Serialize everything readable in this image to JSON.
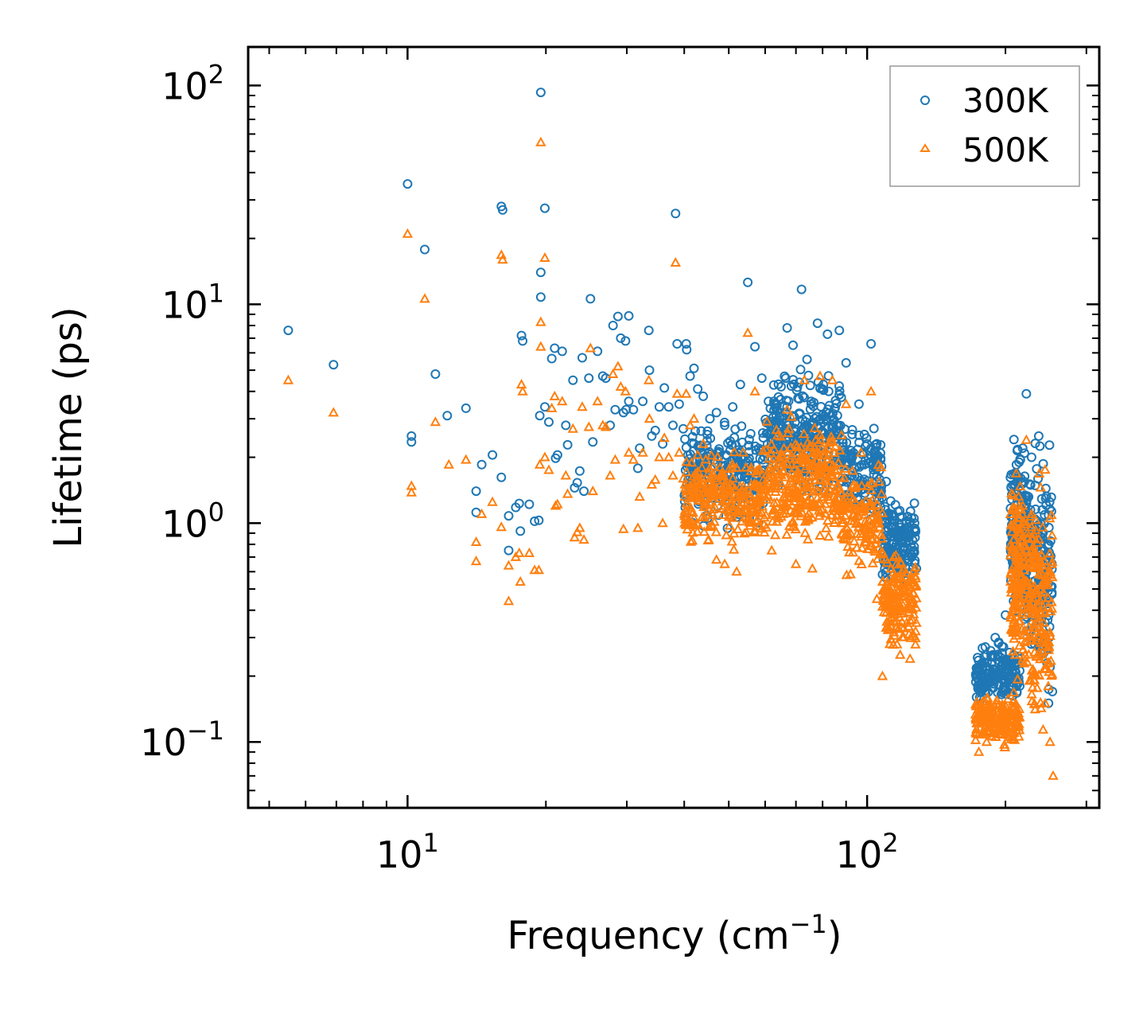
{
  "chart_data": {
    "type": "scatter",
    "xlabel_main": "Frequency (cm",
    "xlabel_sup": "−1",
    "xlabel_tail": ")",
    "ylabel": "Lifetime (ps)",
    "xscale": "log",
    "yscale": "log",
    "xlim": [
      4.5,
      320
    ],
    "ylim": [
      0.05,
      150
    ],
    "x_ticks": [
      {
        "value": 10,
        "base": "10",
        "exp": "1"
      },
      {
        "value": 100,
        "base": "10",
        "exp": "2"
      }
    ],
    "y_ticks": [
      {
        "value": 0.1,
        "base": "10",
        "exp": "−1"
      },
      {
        "value": 1,
        "base": "10",
        "exp": "0"
      },
      {
        "value": 10,
        "base": "10",
        "exp": "1"
      },
      {
        "value": 100,
        "base": "10",
        "exp": "2"
      }
    ],
    "legend_position": "top-right",
    "series": [
      {
        "name": "300K",
        "marker": "circle",
        "color": "#1f77b4",
        "points": [
          [
            5.5,
            7.6
          ],
          [
            6.9,
            5.3
          ],
          [
            10.0,
            35.5
          ],
          [
            10.2,
            2.5
          ],
          [
            10.2,
            2.35
          ],
          [
            10.9,
            17.8
          ],
          [
            11.5,
            4.8
          ],
          [
            12.2,
            3.1
          ],
          [
            13.4,
            3.35
          ],
          [
            14.1,
            1.4
          ],
          [
            14.1,
            1.12
          ],
          [
            14.5,
            1.85
          ],
          [
            15.3,
            2.05
          ],
          [
            16.0,
            28.0
          ],
          [
            16.1,
            27.0
          ],
          [
            16.0,
            1.62
          ],
          [
            16.6,
            1.08
          ],
          [
            16.6,
            0.75
          ],
          [
            17.2,
            1.18
          ],
          [
            17.5,
            1.23
          ],
          [
            17.6,
            0.92
          ],
          [
            17.7,
            7.2
          ],
          [
            17.8,
            6.8
          ],
          [
            18.4,
            1.22
          ],
          [
            18.9,
            1.02
          ],
          [
            19.3,
            1.03
          ],
          [
            19.5,
            93.0
          ],
          [
            19.4,
            3.1
          ],
          [
            19.5,
            14.0
          ],
          [
            19.5,
            10.8
          ],
          [
            19.9,
            27.5
          ],
          [
            19.9,
            3.4
          ],
          [
            20.3,
            2.9
          ],
          [
            20.6,
            5.65
          ],
          [
            20.9,
            6.3
          ],
          [
            21.0,
            1.98
          ],
          [
            21.2,
            2.05
          ],
          [
            21.7,
            6.1
          ],
          [
            22.1,
            2.8
          ],
          [
            22.3,
            2.28
          ],
          [
            22.9,
            4.5
          ],
          [
            23.1,
            1.45
          ],
          [
            23.4,
            1.53
          ],
          [
            23.7,
            1.73
          ],
          [
            24.0,
            5.7
          ],
          [
            24.2,
            1.4
          ],
          [
            24.8,
            4.6
          ],
          [
            25.3,
            2.35
          ],
          [
            25.0,
            10.6
          ],
          [
            25.9,
            6.1
          ],
          [
            26.6,
            4.7
          ],
          [
            27.0,
            4.6
          ],
          [
            27.6,
            2.8
          ],
          [
            28.0,
            8.0
          ],
          [
            28.3,
            3.3
          ],
          [
            28.7,
            8.8
          ],
          [
            29.1,
            7.0
          ],
          [
            29.5,
            3.2
          ],
          [
            29.8,
            6.8
          ],
          [
            30.3,
            3.6
          ],
          [
            30.3,
            8.85
          ],
          [
            31.0,
            3.3
          ],
          [
            29.9,
            3.3
          ],
          [
            31.7,
            1.78
          ],
          [
            32.0,
            2.2
          ],
          [
            32.5,
            3.6
          ],
          [
            33.5,
            7.6
          ],
          [
            33.6,
            5.0
          ],
          [
            34.0,
            2.5
          ],
          [
            34.6,
            2.65
          ],
          [
            35.3,
            3.4
          ],
          [
            35.9,
            2.3
          ],
          [
            36.2,
            4.15
          ],
          [
            37.0,
            3.4
          ],
          [
            37.8,
            2.8
          ],
          [
            38.3,
            26.0
          ],
          [
            38.6,
            6.6
          ],
          [
            39.0,
            3.5
          ],
          [
            39.8,
            2.7
          ],
          [
            40.4,
            6.6
          ],
          [
            40.5,
            6.2
          ],
          [
            41.2,
            4.7
          ],
          [
            42.0,
            5.1
          ],
          [
            42.8,
            4.1
          ],
          [
            44.0,
            3.8
          ],
          [
            45.5,
            3.0
          ],
          [
            47.0,
            3.2
          ],
          [
            49.0,
            2.8
          ],
          [
            51.0,
            3.4
          ],
          [
            53.0,
            4.3
          ],
          [
            55.0,
            12.6
          ],
          [
            57.0,
            6.4
          ],
          [
            59.0,
            4.6
          ],
          [
            61.0,
            3.6
          ],
          [
            65.0,
            4.2
          ],
          [
            67.0,
            7.8
          ],
          [
            69.0,
            6.5
          ],
          [
            72.0,
            11.7
          ],
          [
            74.0,
            5.6
          ],
          [
            78.0,
            8.2
          ],
          [
            82.0,
            7.3
          ],
          [
            87.0,
            7.6
          ],
          [
            90.0,
            5.4
          ],
          [
            96.0,
            3.5
          ],
          [
            102.0,
            6.6
          ],
          [
            105.0,
            2.3
          ],
          [
            110.0,
            1.55
          ],
          [
            112.0,
            1.03
          ],
          [
            116.0,
            0.92
          ],
          [
            120.0,
            0.78
          ],
          [
            125.0,
            0.7
          ],
          [
            128.0,
            0.62
          ],
          [
            175.0,
            0.22
          ],
          [
            182.0,
            0.25
          ],
          [
            190.0,
            0.3
          ],
          [
            200.0,
            0.38
          ],
          [
            210.0,
            0.7
          ],
          [
            218.0,
            2.2
          ],
          [
            222.0,
            3.9
          ],
          [
            228.0,
            2.0
          ],
          [
            236.0,
            0.55
          ],
          [
            244.0,
            0.3
          ],
          [
            250.0,
            0.22
          ],
          [
            253.0,
            0.17
          ]
        ],
        "dense_regions": [
          {
            "x_range": [
              40,
              60
            ],
            "y_low": 0.85,
            "y_high": 3.3,
            "count": 260
          },
          {
            "x_range": [
              60,
              88
            ],
            "y_low": 1.2,
            "y_high": 5.6,
            "count": 300
          },
          {
            "x_range": [
              88,
              108
            ],
            "y_low": 0.8,
            "y_high": 3.2,
            "count": 140
          },
          {
            "x_range": [
              108,
              128
            ],
            "y_low": 0.45,
            "y_high": 1.5,
            "count": 160
          },
          {
            "x_range": [
              172,
              215
            ],
            "y_low": 0.14,
            "y_high": 0.3,
            "count": 180
          },
          {
            "x_range": [
              205,
              222
            ],
            "y_low": 0.25,
            "y_high": 3.5,
            "count": 160
          },
          {
            "x_range": [
              222,
              253
            ],
            "y_low": 0.12,
            "y_high": 3.5,
            "count": 180
          }
        ]
      },
      {
        "name": "500K",
        "marker": "triangle",
        "color": "#ff7f0e",
        "points": [
          [
            5.5,
            4.5
          ],
          [
            6.9,
            3.2
          ],
          [
            10.0,
            21.0
          ],
          [
            10.2,
            1.48
          ],
          [
            10.2,
            1.38
          ],
          [
            10.9,
            10.6
          ],
          [
            11.5,
            2.9
          ],
          [
            12.3,
            1.85
          ],
          [
            13.4,
            1.95
          ],
          [
            14.1,
            0.82
          ],
          [
            14.1,
            0.67
          ],
          [
            14.5,
            1.1
          ],
          [
            15.3,
            1.25
          ],
          [
            16.0,
            16.8
          ],
          [
            16.1,
            16.0
          ],
          [
            16.0,
            0.96
          ],
          [
            16.6,
            0.64
          ],
          [
            16.6,
            0.44
          ],
          [
            17.2,
            0.7
          ],
          [
            17.5,
            0.73
          ],
          [
            17.6,
            0.54
          ],
          [
            17.7,
            4.3
          ],
          [
            17.8,
            4.0
          ],
          [
            18.4,
            0.73
          ],
          [
            18.9,
            0.61
          ],
          [
            19.3,
            0.61
          ],
          [
            19.5,
            55.0
          ],
          [
            19.4,
            1.85
          ],
          [
            19.5,
            8.3
          ],
          [
            19.5,
            6.4
          ],
          [
            19.9,
            16.3
          ],
          [
            19.9,
            2.0
          ],
          [
            20.3,
            1.75
          ],
          [
            20.6,
            3.35
          ],
          [
            20.9,
            3.8
          ],
          [
            21.0,
            1.2
          ],
          [
            21.2,
            1.22
          ],
          [
            21.7,
            3.6
          ],
          [
            22.1,
            1.65
          ],
          [
            22.3,
            1.36
          ],
          [
            22.9,
            2.7
          ],
          [
            23.1,
            0.86
          ],
          [
            23.4,
            0.91
          ],
          [
            23.7,
            0.95
          ],
          [
            24.0,
            3.4
          ],
          [
            24.2,
            0.84
          ],
          [
            24.8,
            2.75
          ],
          [
            25.3,
            1.4
          ],
          [
            25.0,
            6.3
          ],
          [
            25.9,
            3.6
          ],
          [
            26.6,
            2.8
          ],
          [
            27.0,
            2.75
          ],
          [
            27.6,
            1.65
          ],
          [
            28.0,
            4.8
          ],
          [
            28.3,
            1.95
          ],
          [
            28.7,
            5.2
          ],
          [
            29.1,
            4.2
          ],
          [
            29.5,
            0.94
          ],
          [
            29.8,
            4.0
          ],
          [
            30.3,
            2.1
          ],
          [
            31.0,
            1.95
          ],
          [
            31.7,
            0.95
          ],
          [
            32.0,
            1.32
          ],
          [
            32.5,
            2.1
          ],
          [
            33.5,
            4.5
          ],
          [
            33.6,
            3.0
          ],
          [
            34.0,
            1.5
          ],
          [
            34.6,
            1.58
          ],
          [
            35.3,
            2.0
          ],
          [
            35.9,
            1.0
          ],
          [
            36.2,
            2.45
          ],
          [
            37.0,
            2.0
          ],
          [
            37.8,
            1.65
          ],
          [
            38.3,
            15.5
          ],
          [
            38.6,
            3.9
          ],
          [
            39.0,
            2.1
          ],
          [
            39.8,
            1.6
          ],
          [
            40.4,
            3.9
          ],
          [
            40.5,
            0.98
          ],
          [
            41.2,
            2.8
          ],
          [
            42.0,
            3.0
          ],
          [
            44.0,
            2.3
          ],
          [
            47.0,
            0.68
          ],
          [
            49.0,
            0.65
          ],
          [
            52.0,
            0.6
          ],
          [
            55.0,
            7.4
          ],
          [
            57.0,
            4.0
          ],
          [
            62.0,
            0.75
          ],
          [
            67.0,
            3.3
          ],
          [
            70.0,
            0.65
          ],
          [
            73.0,
            4.5
          ],
          [
            76.0,
            0.62
          ],
          [
            79.0,
            4.7
          ],
          [
            84.0,
            4.5
          ],
          [
            90.0,
            3.5
          ],
          [
            97.0,
            2.1
          ],
          [
            102.0,
            4.0
          ],
          [
            105.0,
            0.45
          ],
          [
            108.0,
            0.2
          ],
          [
            112.0,
            0.28
          ],
          [
            118.0,
            0.25
          ],
          [
            124.0,
            0.24
          ],
          [
            128.0,
            0.35
          ],
          [
            175.0,
            0.09
          ],
          [
            182.0,
            0.1
          ],
          [
            190.0,
            0.12
          ],
          [
            200.0,
            0.13
          ],
          [
            210.0,
            0.25
          ],
          [
            218.0,
            1.2
          ],
          [
            222.0,
            2.4
          ],
          [
            228.0,
            1.1
          ],
          [
            236.0,
            0.3
          ],
          [
            244.0,
            0.15
          ],
          [
            250.0,
            0.1
          ],
          [
            254.0,
            0.07
          ]
        ],
        "dense_regions": [
          {
            "x_range": [
              40,
              60
            ],
            "y_low": 0.7,
            "y_high": 2.4,
            "count": 260
          },
          {
            "x_range": [
              60,
              88
            ],
            "y_low": 0.7,
            "y_high": 3.4,
            "count": 300
          },
          {
            "x_range": [
              88,
              108
            ],
            "y_low": 0.5,
            "y_high": 2.1,
            "count": 140
          },
          {
            "x_range": [
              108,
              128
            ],
            "y_low": 0.23,
            "y_high": 0.85,
            "count": 160
          },
          {
            "x_range": [
              172,
              215
            ],
            "y_low": 0.09,
            "y_high": 0.18,
            "count": 180
          },
          {
            "x_range": [
              205,
              222
            ],
            "y_low": 0.15,
            "y_high": 2.2,
            "count": 160
          },
          {
            "x_range": [
              222,
              253
            ],
            "y_low": 0.07,
            "y_high": 2.2,
            "count": 180
          }
        ]
      }
    ]
  }
}
